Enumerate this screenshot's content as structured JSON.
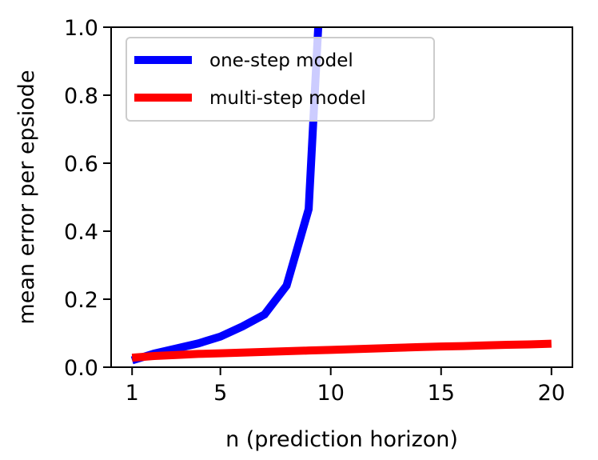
{
  "chart_data": {
    "type": "line",
    "title": "",
    "xlabel": "n (prediction horizon)",
    "ylabel": "mean error per epsiode",
    "xlim": [
      0.05,
      20.95
    ],
    "ylim": [
      0.0,
      1.0
    ],
    "xticks": [
      1,
      5,
      10,
      15,
      20
    ],
    "xtick_labels": [
      "1",
      "5",
      "10",
      "15",
      "20"
    ],
    "yticks": [
      0.0,
      0.2,
      0.4,
      0.6,
      0.8,
      1.0
    ],
    "ytick_labels": [
      "0.0",
      "0.2",
      "0.4",
      "0.6",
      "0.8",
      "1.0"
    ],
    "grid": false,
    "legend_position": "upper-left",
    "series": [
      {
        "name": "one-step model",
        "color": "#0000ff",
        "x": [
          1,
          2,
          3,
          4,
          5,
          6,
          7,
          8,
          9,
          10
        ],
        "y": [
          0.02,
          0.04,
          0.055,
          0.07,
          0.09,
          0.12,
          0.155,
          0.24,
          0.465,
          1.7
        ]
      },
      {
        "name": "multi-step model",
        "color": "#ff0000",
        "x": [
          1,
          2,
          3,
          4,
          5,
          6,
          7,
          8,
          9,
          10,
          11,
          12,
          13,
          14,
          15,
          16,
          17,
          18,
          19,
          20
        ],
        "y": [
          0.028,
          0.033,
          0.036,
          0.039,
          0.041,
          0.043,
          0.045,
          0.047,
          0.049,
          0.051,
          0.053,
          0.055,
          0.057,
          0.059,
          0.061,
          0.062,
          0.064,
          0.066,
          0.067,
          0.069
        ]
      }
    ]
  }
}
